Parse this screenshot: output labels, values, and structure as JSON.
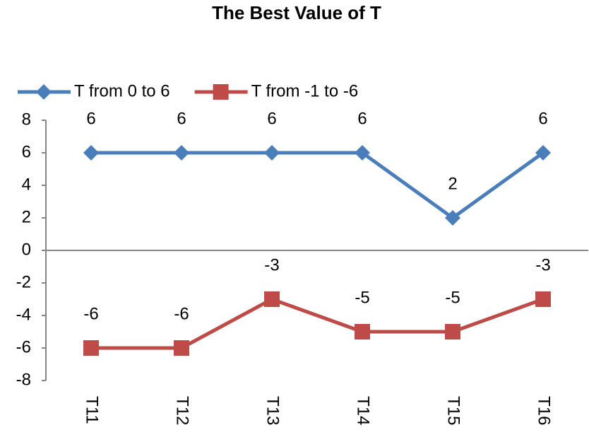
{
  "chart_data": {
    "type": "line",
    "title": "The Best Value of T",
    "categories": [
      "T11",
      "T12",
      "T13",
      "T14",
      "T15",
      "T16"
    ],
    "series": [
      {
        "name": "T from 0 to 6",
        "color": "#4a7ebb",
        "marker": "diamond",
        "values": [
          6,
          6,
          6,
          6,
          2,
          6
        ]
      },
      {
        "name": "T from -1 to -6",
        "color": "#be4b48",
        "marker": "square",
        "values": [
          -6,
          -6,
          -3,
          -5,
          -5,
          -3
        ]
      }
    ],
    "ylim": [
      -8,
      8
    ],
    "yticks": [
      -8,
      -6,
      -4,
      -2,
      0,
      2,
      4,
      6,
      8
    ],
    "grid": false,
    "legend": "top"
  }
}
